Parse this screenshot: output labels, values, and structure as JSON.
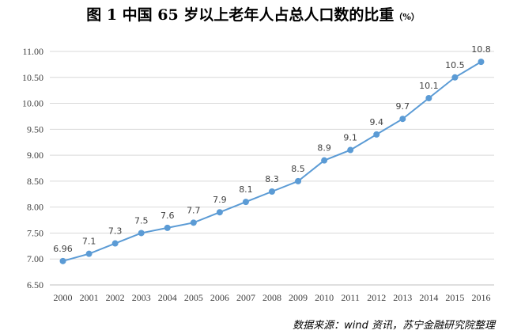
{
  "chart_title": "图 1  中国 65 岁以上老年人占总人口数的比重",
  "chart_unit": "（%）",
  "source_note": "数据来源：wind 资讯，苏宁金融研究院整理",
  "colors": {
    "line": "#5B9BD5",
    "marker": "#5B9BD5",
    "grid": "#d9d9d9",
    "axis": "#bfbfbf",
    "text": "#404040"
  },
  "chart_data": {
    "type": "line",
    "title": "图 1  中国 65 岁以上老年人占总人口数的比重（%）",
    "xlabel": "",
    "ylabel": "",
    "categories": [
      "2000",
      "2001",
      "2002",
      "2003",
      "2004",
      "2005",
      "2006",
      "2007",
      "2008",
      "2009",
      "2010",
      "2011",
      "2012",
      "2013",
      "2014",
      "2015",
      "2016"
    ],
    "values": [
      6.96,
      7.1,
      7.3,
      7.5,
      7.6,
      7.7,
      7.9,
      8.1,
      8.3,
      8.5,
      8.9,
      9.1,
      9.4,
      9.7,
      10.1,
      10.5,
      10.8
    ],
    "data_labels": [
      "6.96",
      "7.1",
      "7.3",
      "7.5",
      "7.6",
      "7.7",
      "7.9",
      "8.1",
      "8.3",
      "8.5",
      "8.9",
      "9.1",
      "9.4",
      "9.7",
      "10.1",
      "10.5",
      "10.8"
    ],
    "y_ticks": [
      "6.50",
      "7.00",
      "7.50",
      "8.00",
      "8.50",
      "9.00",
      "9.50",
      "10.00",
      "10.50",
      "11.00"
    ],
    "ylim": [
      6.5,
      11.0
    ],
    "grid": true,
    "legend": "none"
  }
}
